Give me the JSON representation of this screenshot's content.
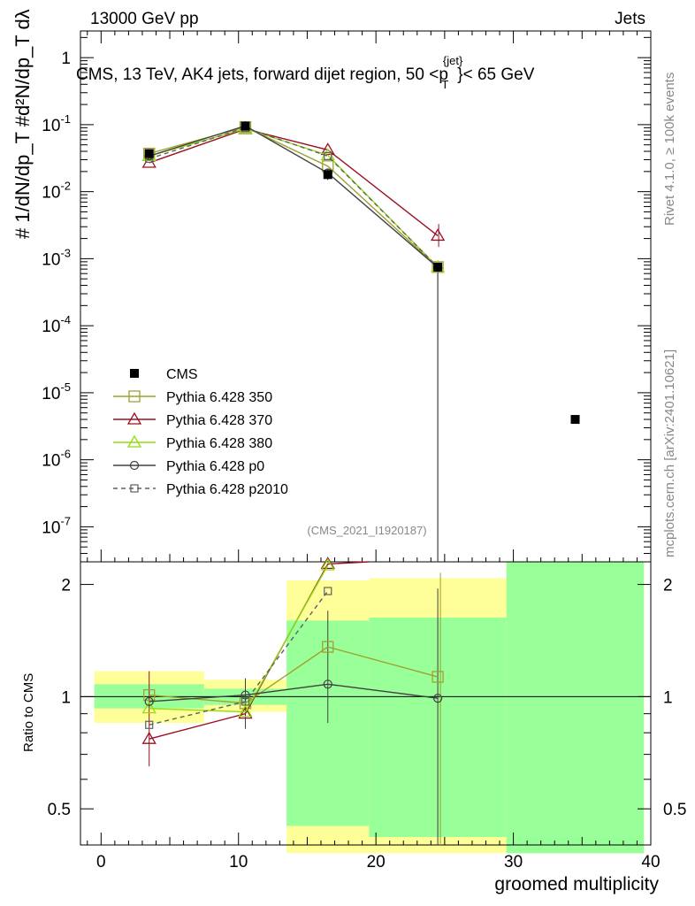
{
  "header": {
    "energy_label": "13000 GeV pp",
    "category_label": "Jets",
    "plot_title": "CMS, 13 TeV, AK4 jets, forward dijet region, 50 <p",
    "title_sup": "{jet}",
    "title_sub": "T",
    "title_end": "}< 65 GeV",
    "watermark": "(CMS_2021_I1920187)"
  },
  "side_labels": {
    "rivet": "Rivet 4.1.0, ≥ 100k events",
    "mcplots": "mcplots.cern.ch [arXiv:2401.10621]"
  },
  "axes": {
    "y_label_main": "# 1/dN/dp_T #d²N/dp_T dλ",
    "y_label_ratio": "Ratio to CMS",
    "x_label": "groomed multiplicity"
  },
  "colors": {
    "cms": "#000000",
    "p350": "#a0a030",
    "p370": "#9a1022",
    "p380": "#90dd10",
    "p0": "#404040",
    "p2010": "#606060",
    "band_inner": "#99ff99",
    "band_outer": "#ffff99"
  },
  "chart_data": [
    {
      "type": "line",
      "scale": "log",
      "title": "CMS, 13 TeV, AK4 jets, forward dijet region, 50 <p_T^{jet}< 65 GeV",
      "xlabel": "groomed multiplicity",
      "xlim": [
        -1.5,
        40
      ],
      "ylim": [
        3e-08,
        2.5
      ],
      "y_ticks": [
        "1",
        "10^-1",
        "10^-2",
        "10^-3",
        "10^-4",
        "10^-5",
        "10^-6",
        "10^-7"
      ],
      "legend_position": "middle-left",
      "series": [
        {
          "name": "CMS",
          "key": "cms",
          "marker": "filled-square",
          "x": [
            3.5,
            10.5,
            16.5,
            24.5,
            34.5
          ],
          "y": [
            0.037,
            0.095,
            0.018,
            0.00075,
            4e-06
          ]
        },
        {
          "name": "Pythia 6.428 350",
          "key": "p350",
          "marker": "open-square",
          "line": "solid",
          "x": [
            3.5,
            10.5,
            16.5,
            24.5
          ],
          "y": [
            0.037,
            0.092,
            0.024,
            0.00075
          ]
        },
        {
          "name": "Pythia 6.428 370",
          "key": "p370",
          "marker": "open-triangle",
          "line": "solid",
          "x": [
            3.5,
            10.5,
            16.5,
            24.5
          ],
          "y": [
            0.027,
            0.086,
            0.042,
            0.0022
          ]
        },
        {
          "name": "Pythia 6.428 380",
          "key": "p380",
          "marker": "open-triangle",
          "line": "solid",
          "x": [
            3.5,
            10.5,
            16.5,
            24.5
          ],
          "y": [
            0.034,
            0.087,
            0.035,
            0.00075
          ]
        },
        {
          "name": "Pythia 6.428 p0",
          "key": "p0",
          "marker": "open-circle",
          "line": "solid",
          "x": [
            3.5,
            10.5,
            16.5,
            24.5
          ],
          "y": [
            0.034,
            0.096,
            0.019,
            0.00074
          ]
        },
        {
          "name": "Pythia 6.428 p2010",
          "key": "p2010",
          "marker": "open-square-small",
          "line": "dashed",
          "x": [
            3.5,
            10.5,
            16.5,
            24.5
          ],
          "y": [
            0.031,
            0.09,
            0.034,
            0.00075
          ]
        }
      ]
    },
    {
      "type": "line",
      "scale": "log",
      "ylabel": "Ratio to CMS",
      "xlabel": "groomed multiplicity",
      "xlim": [
        -1.5,
        40
      ],
      "ylim": [
        0.4,
        2.3
      ],
      "y_ticks": [
        "0.5",
        "1",
        "2"
      ],
      "x_ticks": [
        "0",
        "10",
        "20",
        "30",
        "40"
      ],
      "bands": [
        {
          "x_range": [
            -0.5,
            7.5
          ],
          "inner": [
            0.93,
            1.08
          ],
          "outer": [
            0.85,
            1.17
          ]
        },
        {
          "x_range": [
            7.5,
            13.5
          ],
          "inner": [
            0.95,
            1.05
          ],
          "outer": [
            0.91,
            1.11
          ]
        },
        {
          "x_range": [
            13.5,
            19.5
          ],
          "inner": [
            0.45,
            1.6
          ],
          "outer": [
            0.38,
            2.05
          ]
        },
        {
          "x_range": [
            19.5,
            29.5
          ],
          "inner": [
            0.42,
            1.63
          ],
          "outer": [
            0.38,
            2.08
          ]
        },
        {
          "x_range": [
            29.5,
            39.5
          ],
          "inner": [
            0.38,
            2.3
          ],
          "outer": [
            0.38,
            2.3
          ]
        }
      ],
      "series": [
        {
          "name": "Pythia 6.428 350",
          "key": "p350",
          "x": [
            3.5,
            10.5,
            16.5,
            24.5
          ],
          "y": [
            1.01,
            0.96,
            1.36,
            1.13
          ]
        },
        {
          "name": "Pythia 6.428 370",
          "key": "p370",
          "x": [
            3.5,
            10.5,
            16.5,
            19.5
          ],
          "y": [
            0.77,
            0.9,
            2.27,
            2.4
          ]
        },
        {
          "name": "Pythia 6.428 380",
          "key": "p380",
          "x": [
            3.5,
            10.5,
            16.5
          ],
          "y": [
            0.93,
            0.91,
            2.25
          ]
        },
        {
          "name": "Pythia 6.428 p0",
          "key": "p0",
          "x": [
            3.5,
            10.5,
            16.5,
            24.5
          ],
          "y": [
            0.97,
            1.01,
            1.08,
            0.99
          ]
        },
        {
          "name": "Pythia 6.428 p2010",
          "key": "p2010",
          "x": [
            3.5,
            10.5,
            16.5
          ],
          "y": [
            0.84,
            0.97,
            1.92
          ]
        }
      ]
    }
  ]
}
